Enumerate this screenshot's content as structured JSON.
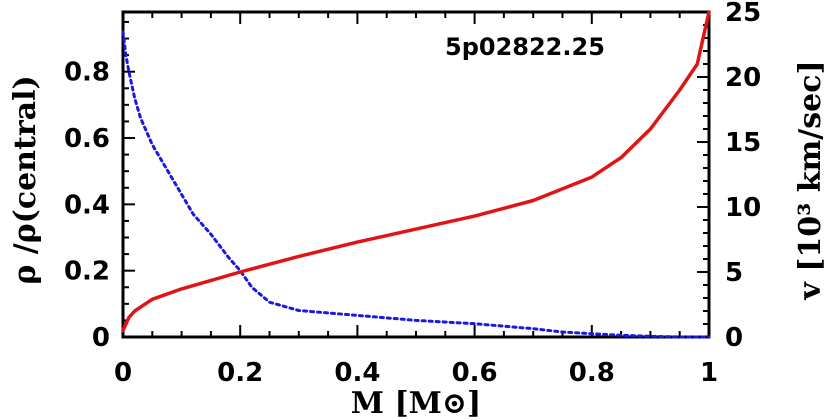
{
  "chart_data": {
    "type": "line",
    "annotation": "5p02822.25",
    "xlabel": "M [M⊙]",
    "ylabel_left": "ρ /ρ(central)",
    "ylabel_right": "v [10³ km/sec]",
    "xlim": [
      0,
      1
    ],
    "ylim_left": [
      0,
      0.98
    ],
    "ylim_right": [
      0,
      25
    ],
    "x_ticks": [
      "0",
      "0.2",
      "0.4",
      "0.6",
      "0.8",
      "1"
    ],
    "y_left_ticks": [
      "0",
      "0.2",
      "0.4",
      "0.6",
      "0.8"
    ],
    "y_right_ticks": [
      "0",
      "5",
      "10",
      "15",
      "20",
      "25"
    ],
    "grid": false,
    "series": [
      {
        "axis": "left",
        "style": "dotted",
        "color": "#1a1adf",
        "x": [
          0.0,
          0.005,
          0.01,
          0.02,
          0.03,
          0.05,
          0.08,
          0.1,
          0.12,
          0.15,
          0.18,
          0.2,
          0.22,
          0.25,
          0.3,
          0.4,
          0.5,
          0.6,
          0.7,
          0.75,
          0.8,
          0.85,
          0.9,
          0.95,
          1.0
        ],
        "y": [
          0.92,
          0.85,
          0.8,
          0.72,
          0.66,
          0.58,
          0.49,
          0.43,
          0.37,
          0.31,
          0.24,
          0.2,
          0.15,
          0.105,
          0.08,
          0.065,
          0.05,
          0.04,
          0.025,
          0.015,
          0.01,
          0.005,
          0.002,
          0.0,
          0.0
        ]
      },
      {
        "axis": "right",
        "style": "solid",
        "color": "#e01414",
        "x": [
          0.0,
          0.005,
          0.01,
          0.02,
          0.05,
          0.1,
          0.2,
          0.3,
          0.4,
          0.5,
          0.6,
          0.7,
          0.8,
          0.85,
          0.9,
          0.95,
          0.98,
          0.99,
          1.0
        ],
        "y": [
          0.5,
          1.0,
          1.5,
          2.0,
          2.9,
          3.7,
          5.0,
          6.2,
          7.3,
          8.3,
          9.3,
          10.5,
          12.3,
          13.8,
          16.0,
          19.0,
          21.0,
          23.0,
          25.0
        ]
      }
    ]
  }
}
